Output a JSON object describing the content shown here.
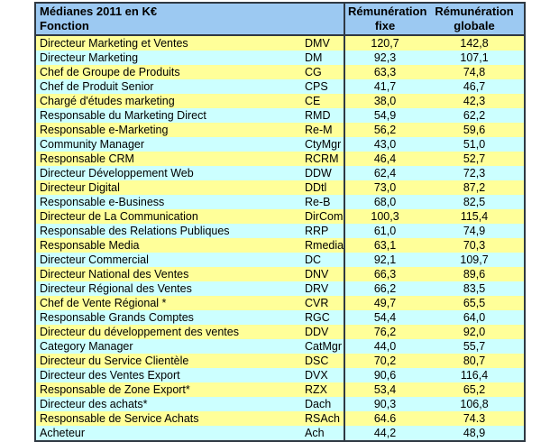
{
  "table": {
    "header": {
      "title": "Médianes 2011 en K€",
      "fonction_label": "Fonction",
      "fixe_line1": "Rémunération",
      "fixe_line2": "fixe",
      "globale_line1": "Rémunération",
      "globale_line2": "globale"
    },
    "rows": [
      {
        "fonction": "Directeur Marketing et Ventes",
        "abbr": "DMV",
        "fixe": "120,7",
        "globale": "142,8"
      },
      {
        "fonction": "Directeur Marketing",
        "abbr": "DM",
        "fixe": "92,3",
        "globale": "107,1"
      },
      {
        "fonction": "Chef de Groupe de Produits",
        "abbr": "CG",
        "fixe": "63,3",
        "globale": "74,8"
      },
      {
        "fonction": "Chef de Produit Senior",
        "abbr": "CPS",
        "fixe": "41,7",
        "globale": "46,7"
      },
      {
        "fonction": "Chargé d'études marketing",
        "abbr": "CE",
        "fixe": "38,0",
        "globale": "42,3"
      },
      {
        "fonction": "Responsable du Marketing Direct",
        "abbr": "RMD",
        "fixe": "54,9",
        "globale": "62,2"
      },
      {
        "fonction": "Responsable e-Marketing",
        "abbr": "Re-M",
        "fixe": "56,2",
        "globale": "59,6"
      },
      {
        "fonction": "Community Manager",
        "abbr": "CtyMgr",
        "fixe": "43,0",
        "globale": "51,0"
      },
      {
        "fonction": "Responsable CRM",
        "abbr": "RCRM",
        "fixe": "46,4",
        "globale": "52,7"
      },
      {
        "fonction": "Directeur Développement Web",
        "abbr": "DDW",
        "fixe": "62,4",
        "globale": "72,3"
      },
      {
        "fonction": "Directeur Digital",
        "abbr": "DDtl",
        "fixe": "73,0",
        "globale": "87,2"
      },
      {
        "fonction": "Responsable e-Business",
        "abbr": "Re-B",
        "fixe": "68,0",
        "globale": "82,5"
      },
      {
        "fonction": "Directeur de La Communication",
        "abbr": "DirCom",
        "fixe": "100,3",
        "globale": "115,4"
      },
      {
        "fonction": "Responsable des Relations Publiques",
        "abbr": "RRP",
        "fixe": "61,0",
        "globale": "74,9"
      },
      {
        "fonction": "Responsable Media",
        "abbr": "Rmedia",
        "fixe": "63,1",
        "globale": "70,3"
      },
      {
        "fonction": "Directeur Commercial",
        "abbr": "DC",
        "fixe": "92,1",
        "globale": "109,7"
      },
      {
        "fonction": "Directeur National des Ventes",
        "abbr": "DNV",
        "fixe": "66,3",
        "globale": "89,6"
      },
      {
        "fonction": "Directeur Régional des Ventes",
        "abbr": "DRV",
        "fixe": "66,2",
        "globale": "83,5"
      },
      {
        "fonction": "Chef de Vente Régional *",
        "abbr": "CVR",
        "fixe": "49,7",
        "globale": "65,5"
      },
      {
        "fonction": "Responsable Grands Comptes",
        "abbr": "RGC",
        "fixe": "54,4",
        "globale": "64,0"
      },
      {
        "fonction": "Directeur du développement des ventes",
        "abbr": "DDV",
        "fixe": "76,2",
        "globale": "92,0"
      },
      {
        "fonction": "Category Manager",
        "abbr": "CatMgr",
        "fixe": "44,0",
        "globale": "55,7"
      },
      {
        "fonction": "Directeur du Service Clientèle",
        "abbr": "DSC",
        "fixe": "70,2",
        "globale": "80,7"
      },
      {
        "fonction": "Directeur des Ventes Export",
        "abbr": "DVX",
        "fixe": "90,6",
        "globale": "116,4"
      },
      {
        "fonction": "Responsable de Zone Export*",
        "abbr": "RZX",
        "fixe": "53,4",
        "globale": "65,2"
      },
      {
        "fonction": "Directeur des achats*",
        "abbr": "Dach",
        "fixe": "90,3",
        "globale": "106,8"
      },
      {
        "fonction": "Responsable de Service Achats",
        "abbr": "RSAch",
        "fixe": "64.6",
        "globale": "74.3"
      },
      {
        "fonction": "Acheteur",
        "abbr": "Ach",
        "fixe": "44,2",
        "globale": "48,9"
      }
    ],
    "colors": {
      "header_bg": "#9cc9f2",
      "row_yellow": "#ffff99",
      "row_cyan": "#ccffff",
      "border": "#2f3842",
      "text": "#000000"
    }
  }
}
